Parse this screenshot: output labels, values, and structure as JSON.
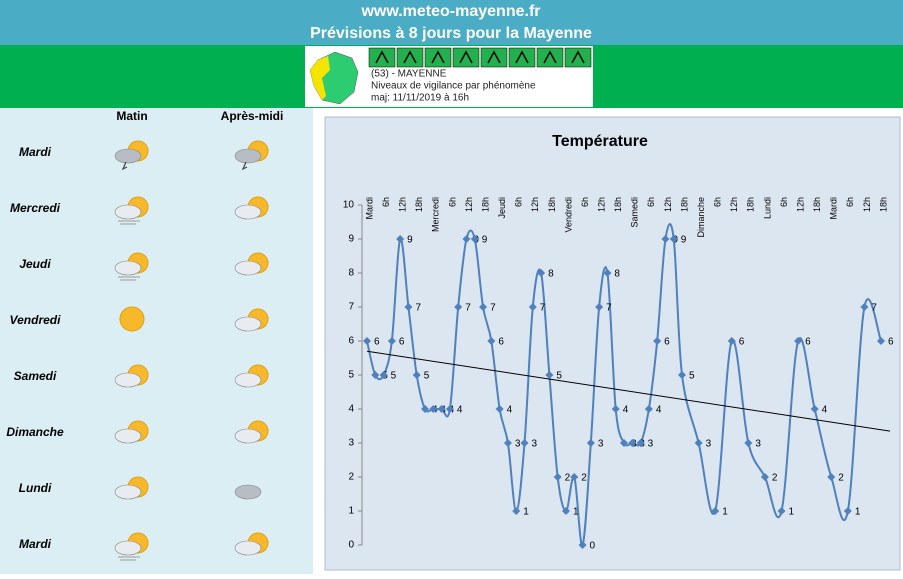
{
  "header": {
    "site": "www.meteo-mayenne.fr",
    "title": "Prévisions à 8 jours pour la Mayenne"
  },
  "vigilance": {
    "department": "(53) - MAYENNE",
    "subtitle": "Niveaux de vigilance par phénomène",
    "updated": "maj: 11/11/2019 à 16h"
  },
  "forecast": {
    "columns": [
      "Matin",
      "Après-midi"
    ],
    "days": [
      "Mardi",
      "Mercredi",
      "Jeudi",
      "Vendredi",
      "Samedi",
      "Dimanche",
      "Lundi",
      "Mardi"
    ]
  },
  "chart_data": {
    "type": "line",
    "title": "Température",
    "categories": [
      "Mardi",
      null,
      "6h",
      null,
      "12h",
      null,
      "18h",
      null,
      "Mercredi",
      null,
      "6h",
      null,
      "12h",
      null,
      "18h",
      null,
      "Jeudi",
      null,
      "6h",
      null,
      "12h",
      null,
      "18h",
      null,
      "Vendredi",
      null,
      "6h",
      null,
      "12h",
      null,
      "18h",
      null,
      "Samedi",
      null,
      "6h",
      null,
      "12h",
      null,
      "18h",
      null,
      "Dimanche",
      null,
      "6h",
      null,
      "12h",
      null,
      "18h",
      null,
      "Lundi",
      null,
      "6h",
      null,
      "12h",
      null,
      "18h",
      null,
      "Mardi",
      null,
      "6h",
      null,
      "12h",
      null,
      "18h"
    ],
    "values": [
      6,
      5,
      5,
      6,
      9,
      7,
      5,
      4,
      4,
      4,
      4,
      7,
      9,
      9,
      7,
      6,
      4,
      3,
      1,
      3,
      7,
      8,
      5,
      2,
      1,
      2,
      0,
      3,
      7,
      8,
      4,
      3,
      3,
      3,
      4,
      6,
      9,
      9,
      5,
      null,
      3,
      null,
      1,
      null,
      6,
      null,
      3,
      null,
      2,
      null,
      1,
      null,
      6,
      null,
      4,
      null,
      2,
      null,
      1,
      null,
      7,
      null,
      6
    ],
    "color": "#4f81bd",
    "connect_gaps": true,
    "trendline": [
      5.7,
      3.35
    ],
    "trendline_color": "#000000",
    "ylim": [
      0,
      10
    ],
    "yticks": [
      0,
      1,
      2,
      3,
      4,
      5,
      6,
      7,
      8,
      9,
      10
    ]
  }
}
